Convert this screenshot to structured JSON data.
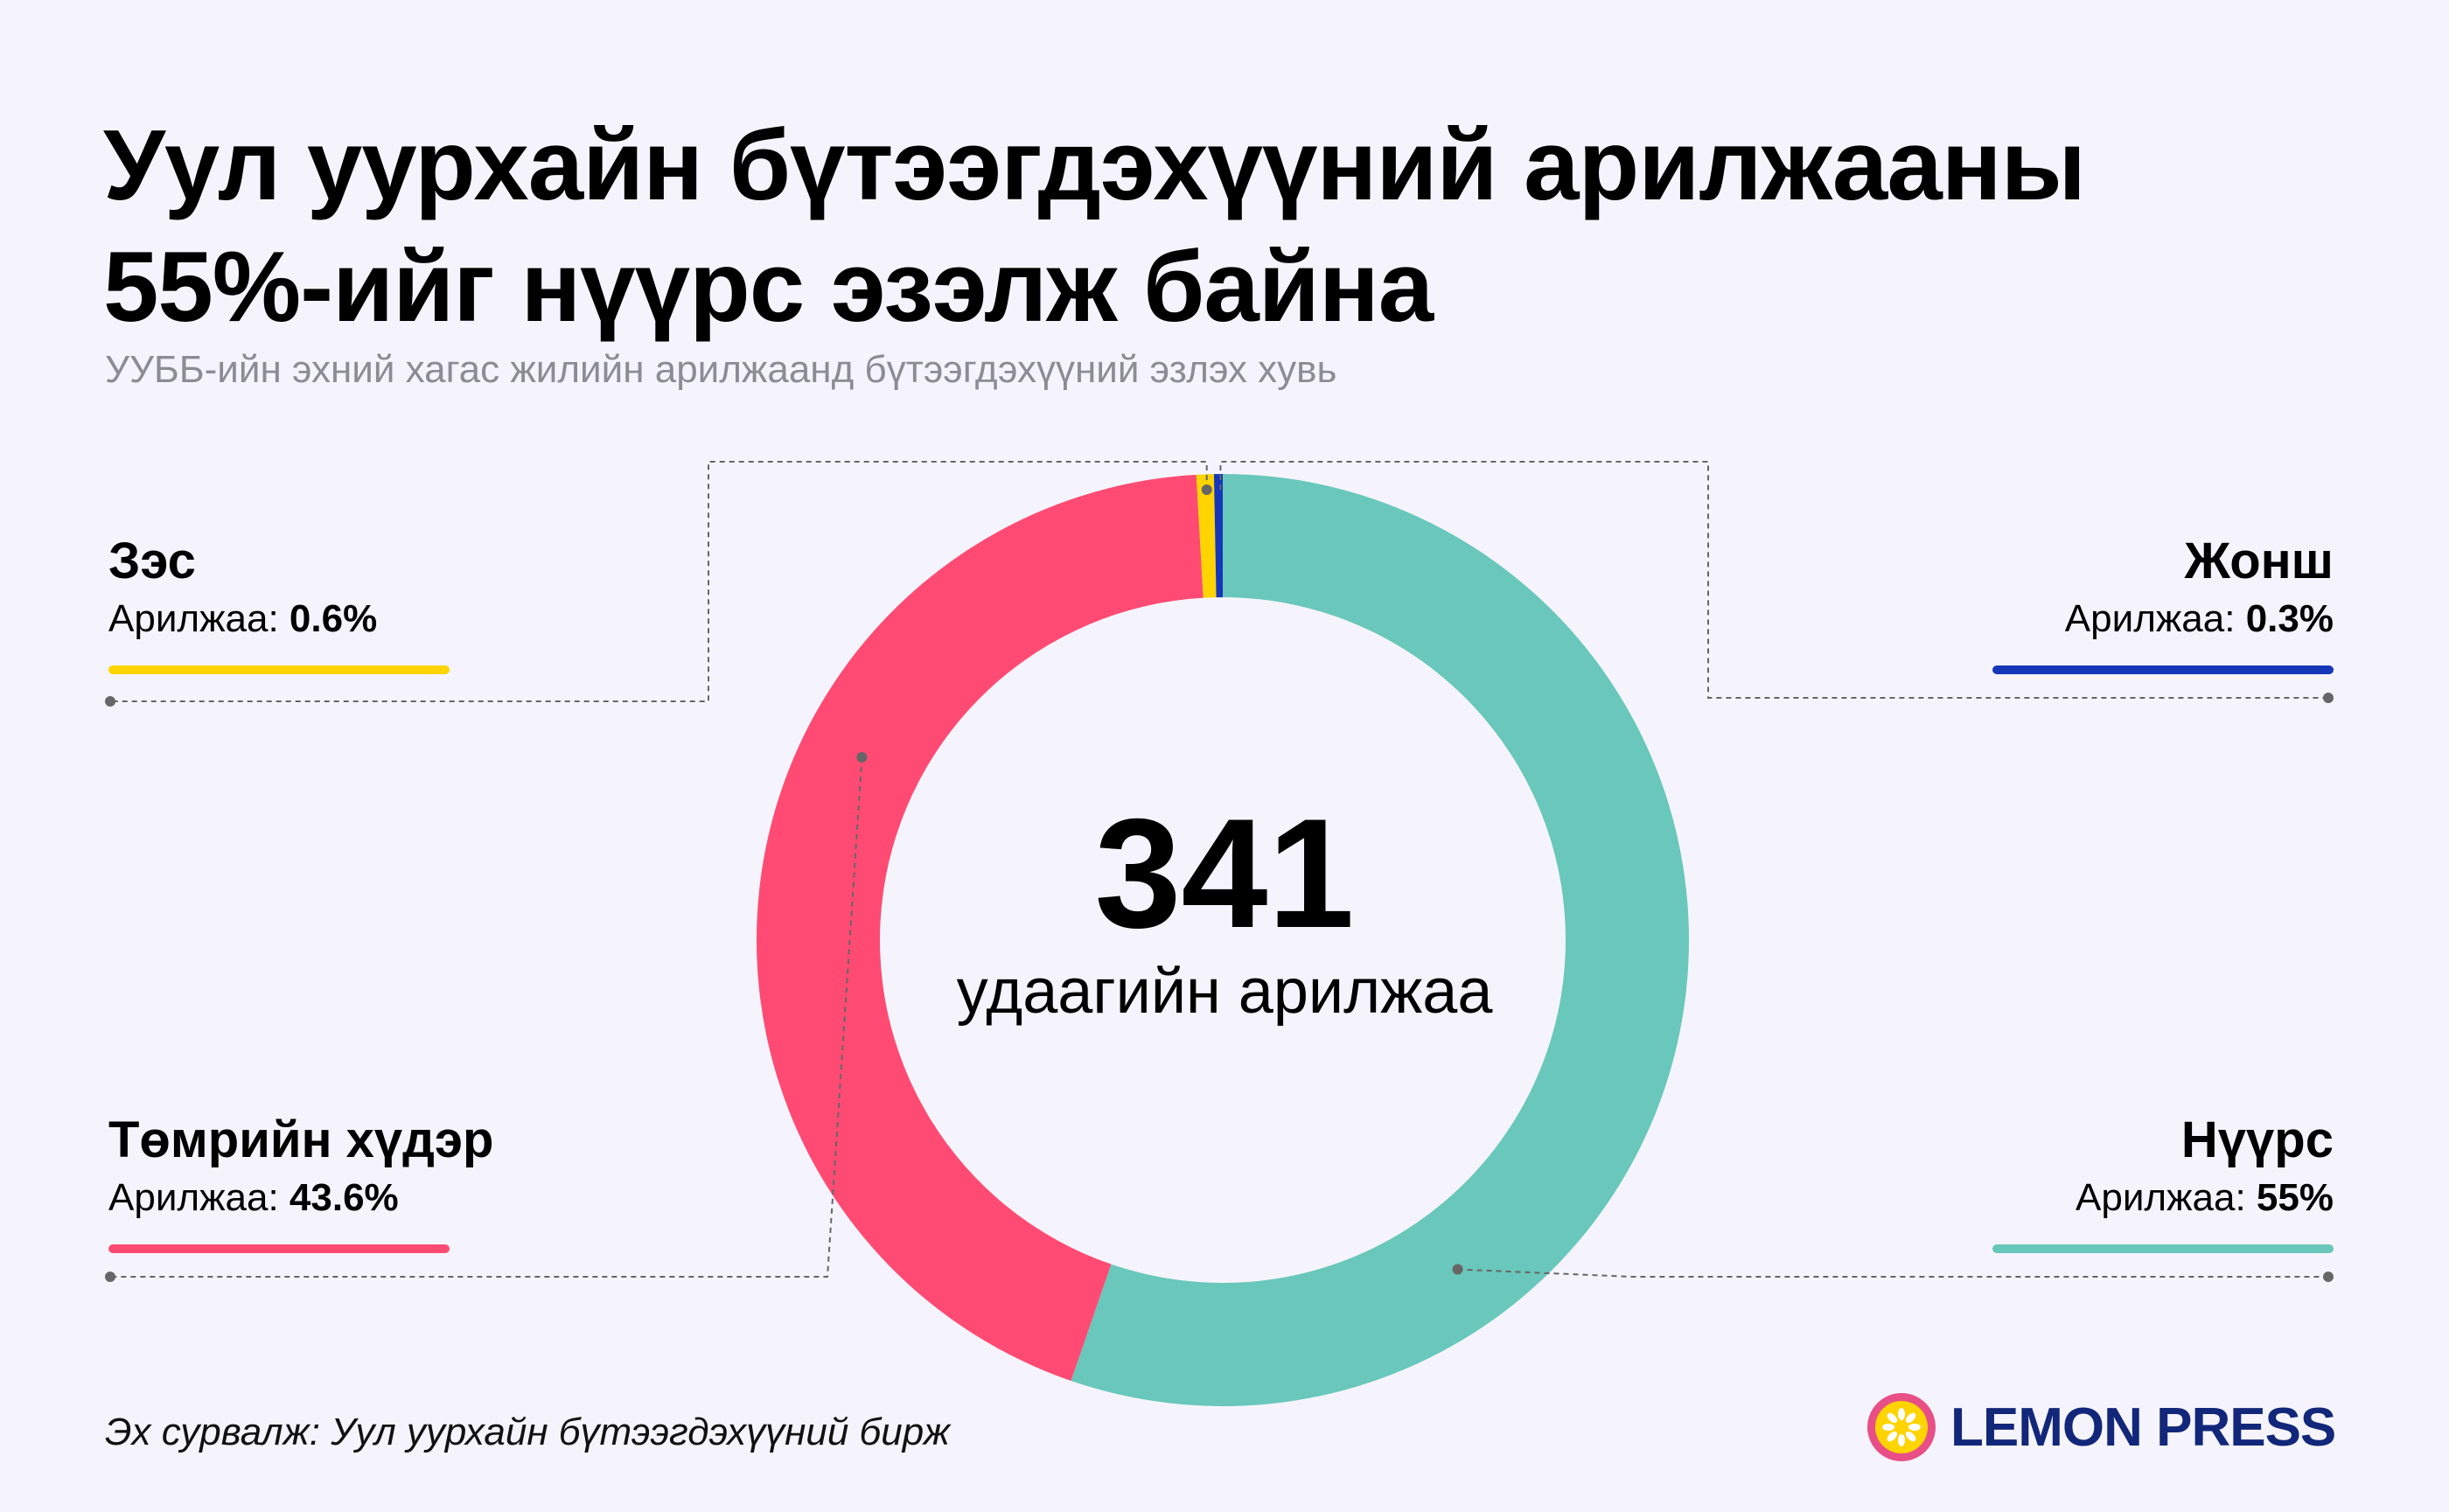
{
  "title_line1": "Уул уурхайн бүтээгдэхүүний арилжааны",
  "title_line2": "55%-ийг нүүрс эзэлж байна",
  "subtitle": "УУББ-ийн эхний хагас жилийн арилжаанд бүтээгдэхүүний эзлэх хувь",
  "center_value": "341",
  "center_caption": "удаагийн арилжаа",
  "source": "Эх сурвалж: Уул уурхайн бүтээгдэхүүний бирж",
  "logo_text": "LEMON PRESS",
  "value_prefix": "Арилжаа:",
  "colors": {
    "coal": "#69c7bb",
    "iron_ore": "#ff4b73",
    "copper": "#ffd400",
    "fluorspar": "#1537b8",
    "background": "#f5f4fc",
    "logo_pink": "#e84f86",
    "logo_yellow": "#ffd400",
    "logo_navy": "#12277a"
  },
  "chart_data": {
    "type": "pie",
    "donut": true,
    "total_label": "341",
    "legend_placement": "corners",
    "series": [
      {
        "name": "Нүүрс",
        "value": 55,
        "label": "55%",
        "color": "#69c7bb"
      },
      {
        "name": "Төмрийн хүдэр",
        "value": 43.6,
        "label": "43.6%",
        "color": "#ff4b73"
      },
      {
        "name": "Зэс",
        "value": 0.6,
        "label": "0.6%",
        "color": "#ffd400"
      },
      {
        "name": "Жонш",
        "value": 0.3,
        "label": "0.3%",
        "color": "#1537b8"
      }
    ]
  }
}
